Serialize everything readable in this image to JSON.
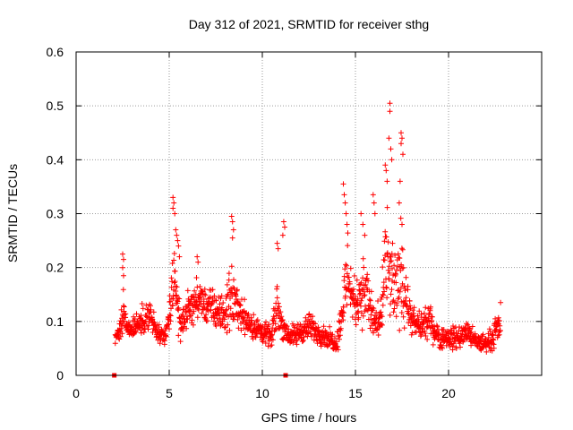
{
  "chart_data": {
    "type": "scatter",
    "title": "Day 312 of 2021, SRMTID for receiver sthg",
    "xlabel": "GPS time / hours",
    "ylabel": "SRMTID / TECUs",
    "xlim": [
      0,
      25
    ],
    "ylim": [
      0,
      0.6
    ],
    "xticks": [
      0,
      5,
      10,
      15,
      20
    ],
    "xtick_labels": [
      "0",
      "5",
      "10",
      "15",
      "20"
    ],
    "yticks": [
      0,
      0.1,
      0.2,
      0.3,
      0.4,
      0.5,
      0.6
    ],
    "ytick_labels": [
      "0",
      "0.1",
      "0.2",
      "0.3",
      "0.4",
      "0.5",
      "0.6"
    ],
    "grid": true,
    "marker": "+",
    "marker_color": "#ff0000",
    "gap_markers": [
      {
        "x": 2.05,
        "y": 0
      },
      {
        "x": 11.25,
        "y": 0
      }
    ],
    "envelope": {
      "x": [
        2.1,
        2.3,
        2.5,
        2.7,
        3.0,
        3.5,
        4.0,
        4.3,
        4.6,
        4.8,
        5.0,
        5.2,
        5.4,
        5.6,
        6.0,
        6.5,
        7.0,
        7.5,
        8.0,
        8.3,
        8.6,
        9.0,
        9.5,
        10.0,
        10.5,
        10.8,
        11.0,
        11.3,
        11.6,
        12.0,
        12.5,
        13.0,
        13.5,
        14.0,
        14.3,
        14.6,
        14.8,
        15.0,
        15.3,
        15.6,
        15.8,
        16.0,
        16.3,
        16.6,
        16.9,
        17.2,
        17.5,
        17.8,
        18.0,
        18.5,
        19.0,
        19.5,
        20.0,
        20.5,
        21.0,
        21.5,
        22.0,
        22.4,
        22.8
      ],
      "mid": [
        0.07,
        0.08,
        0.12,
        0.09,
        0.09,
        0.1,
        0.11,
        0.08,
        0.07,
        0.07,
        0.11,
        0.18,
        0.15,
        0.09,
        0.12,
        0.14,
        0.13,
        0.12,
        0.11,
        0.15,
        0.13,
        0.11,
        0.09,
        0.08,
        0.07,
        0.13,
        0.1,
        0.08,
        0.07,
        0.08,
        0.09,
        0.08,
        0.07,
        0.06,
        0.12,
        0.2,
        0.15,
        0.13,
        0.16,
        0.15,
        0.12,
        0.1,
        0.09,
        0.2,
        0.18,
        0.15,
        0.2,
        0.13,
        0.1,
        0.09,
        0.1,
        0.07,
        0.07,
        0.07,
        0.08,
        0.06,
        0.06,
        0.07,
        0.1
      ],
      "spread": [
        0.025,
        0.03,
        0.06,
        0.03,
        0.03,
        0.035,
        0.04,
        0.03,
        0.025,
        0.025,
        0.05,
        0.1,
        0.07,
        0.035,
        0.045,
        0.05,
        0.05,
        0.05,
        0.045,
        0.1,
        0.05,
        0.045,
        0.035,
        0.03,
        0.025,
        0.07,
        0.04,
        0.03,
        0.03,
        0.03,
        0.035,
        0.03,
        0.025,
        0.025,
        0.06,
        0.12,
        0.08,
        0.06,
        0.09,
        0.09,
        0.07,
        0.05,
        0.05,
        0.15,
        0.12,
        0.1,
        0.15,
        0.06,
        0.04,
        0.035,
        0.04,
        0.03,
        0.03,
        0.03,
        0.03,
        0.025,
        0.025,
        0.03,
        0.05
      ],
      "start": 2.1,
      "end": 22.8,
      "step": 0.014
    },
    "highlights": [
      {
        "x": 2.5,
        "y": 0.225
      },
      {
        "x": 2.55,
        "y": 0.215
      },
      {
        "x": 2.5,
        "y": 0.2
      },
      {
        "x": 2.55,
        "y": 0.185
      },
      {
        "x": 5.2,
        "y": 0.33
      },
      {
        "x": 5.25,
        "y": 0.32
      },
      {
        "x": 5.2,
        "y": 0.31
      },
      {
        "x": 5.3,
        "y": 0.3
      },
      {
        "x": 5.35,
        "y": 0.27
      },
      {
        "x": 5.4,
        "y": 0.26
      },
      {
        "x": 5.45,
        "y": 0.25
      },
      {
        "x": 5.5,
        "y": 0.24
      },
      {
        "x": 5.55,
        "y": 0.22
      },
      {
        "x": 6.5,
        "y": 0.22
      },
      {
        "x": 6.55,
        "y": 0.21
      },
      {
        "x": 8.35,
        "y": 0.295
      },
      {
        "x": 8.4,
        "y": 0.285
      },
      {
        "x": 8.45,
        "y": 0.27
      },
      {
        "x": 8.4,
        "y": 0.255
      },
      {
        "x": 10.8,
        "y": 0.245
      },
      {
        "x": 10.85,
        "y": 0.235
      },
      {
        "x": 11.15,
        "y": 0.285
      },
      {
        "x": 11.2,
        "y": 0.275
      },
      {
        "x": 11.1,
        "y": 0.26
      },
      {
        "x": 14.35,
        "y": 0.355
      },
      {
        "x": 14.4,
        "y": 0.335
      },
      {
        "x": 14.45,
        "y": 0.32
      },
      {
        "x": 14.5,
        "y": 0.3
      },
      {
        "x": 14.55,
        "y": 0.28
      },
      {
        "x": 15.3,
        "y": 0.3
      },
      {
        "x": 15.4,
        "y": 0.28
      },
      {
        "x": 15.5,
        "y": 0.26
      },
      {
        "x": 15.95,
        "y": 0.335
      },
      {
        "x": 16.0,
        "y": 0.32
      },
      {
        "x": 16.05,
        "y": 0.3
      },
      {
        "x": 16.6,
        "y": 0.39
      },
      {
        "x": 16.65,
        "y": 0.38
      },
      {
        "x": 16.7,
        "y": 0.36
      },
      {
        "x": 16.85,
        "y": 0.505
      },
      {
        "x": 16.85,
        "y": 0.49
      },
      {
        "x": 16.8,
        "y": 0.44
      },
      {
        "x": 16.9,
        "y": 0.42
      },
      {
        "x": 16.95,
        "y": 0.4
      },
      {
        "x": 17.45,
        "y": 0.45
      },
      {
        "x": 17.5,
        "y": 0.44
      },
      {
        "x": 17.45,
        "y": 0.43
      },
      {
        "x": 17.55,
        "y": 0.41
      },
      {
        "x": 17.4,
        "y": 0.36
      },
      {
        "x": 17.35,
        "y": 0.32
      },
      {
        "x": 17.5,
        "y": 0.28
      }
    ]
  }
}
